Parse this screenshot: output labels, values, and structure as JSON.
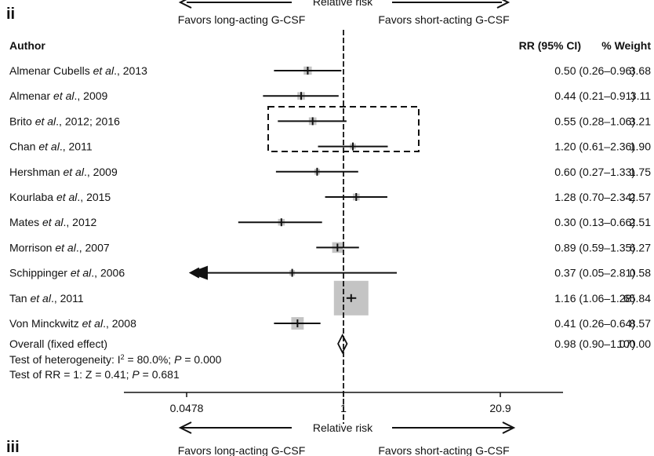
{
  "panel_top": {
    "label": "ii",
    "axis_title_partial": "Relative risk",
    "favors_left": "Favors long-acting G-CSF",
    "favors_right": "Favors short-acting G-CSF"
  },
  "headers": {
    "author": "Author",
    "rr": "RR (95% CI)",
    "weight": "% Weight"
  },
  "chart_data": {
    "type": "forest",
    "scale": "log",
    "xlim": [
      0.0478,
      20.9
    ],
    "xticks": [
      {
        "value": 0.0478,
        "label": "0.0478"
      },
      {
        "value": 1,
        "label": "1"
      },
      {
        "value": 20.9,
        "label": "20.9"
      }
    ],
    "xlabel": "Relative risk",
    "studies": [
      {
        "pre": "Almenar Cubells ",
        "etal": "et al",
        "post": "., 2013",
        "rr": 0.5,
        "lo": 0.26,
        "hi": 0.96,
        "ci_text": "0.50 (0.26–0.96)",
        "weight": 3.68,
        "weight_text": "3.68"
      },
      {
        "pre": "Almenar ",
        "etal": "et al",
        "post": "., 2009",
        "rr": 0.44,
        "lo": 0.21,
        "hi": 0.91,
        "ci_text": "0.44 (0.21–0.91)",
        "weight": 3.11,
        "weight_text": "3.11"
      },
      {
        "pre": "Brito ",
        "etal": "et al",
        "post": "., 2012; 2016",
        "rr": 0.55,
        "lo": 0.28,
        "hi": 1.06,
        "ci_text": "0.55 (0.28–1.06)",
        "weight": 3.21,
        "weight_text": "3.21"
      },
      {
        "pre": "Chan ",
        "etal": "et al",
        "post": "., 2011",
        "rr": 1.2,
        "lo": 0.61,
        "hi": 2.36,
        "ci_text": "1.20 (0.61–2.36)",
        "weight": 1.9,
        "weight_text": "1.90"
      },
      {
        "pre": "Hershman ",
        "etal": "et al",
        "post": "., 2009",
        "rr": 0.6,
        "lo": 0.27,
        "hi": 1.33,
        "ci_text": "0.60 (0.27–1.33)",
        "weight": 1.75,
        "weight_text": "1.75"
      },
      {
        "pre": "Kourlaba ",
        "etal": "et al",
        "post": "., 2015",
        "rr": 1.28,
        "lo": 0.7,
        "hi": 2.34,
        "ci_text": "1.28 (0.70–2.34)",
        "weight": 2.57,
        "weight_text": "2.57"
      },
      {
        "pre": "Mates ",
        "etal": "et al",
        "post": "., 2012",
        "rr": 0.3,
        "lo": 0.13,
        "hi": 0.66,
        "ci_text": "0.30 (0.13–0.66)",
        "weight": 2.51,
        "weight_text": "2.51"
      },
      {
        "pre": "Morrison ",
        "etal": "et al",
        "post": "., 2007",
        "rr": 0.89,
        "lo": 0.59,
        "hi": 1.35,
        "ci_text": "0.89 (0.59–1.35)",
        "weight": 6.27,
        "weight_text": "6.27"
      },
      {
        "pre": "Schippinger ",
        "etal": "et al",
        "post": "., 2006",
        "rr": 0.37,
        "lo": 0.05,
        "hi": 2.81,
        "ci_text": "0.37 (0.05–2.81)",
        "weight": 0.58,
        "weight_text": "0.58",
        "arrow_left": true
      },
      {
        "pre": "Tan ",
        "etal": "et al",
        "post": "., 2011",
        "rr": 1.16,
        "lo": 1.06,
        "hi": 1.28,
        "ci_text": "1.16 (1.06–1.28)",
        "weight": 65.84,
        "weight_text": "65.84"
      },
      {
        "pre": "Von Minckwitz ",
        "etal": "et al",
        "post": "., 2008",
        "rr": 0.41,
        "lo": 0.26,
        "hi": 0.64,
        "ci_text": "0.41 (0.26–0.64)",
        "weight": 8.57,
        "weight_text": "8.57"
      }
    ],
    "overall": {
      "label": "Overall (fixed effect)",
      "rr": 0.98,
      "lo": 0.9,
      "hi": 1.07,
      "ci_text": "0.98 (0.90–1.07)",
      "weight_text": "100.00"
    },
    "heterogeneity": {
      "pre": "Test of heterogeneity: I",
      "sup": "2",
      "mid": " = 80.0%; ",
      "p": "P",
      "post": " = 0.000"
    },
    "test_rr": {
      "pre": "Test of RR = 1: Z = 0.41; ",
      "p": "P",
      "post": " = 0.681"
    },
    "highlight_box_rows": [
      "Brito et al., 2012; 2016",
      "Chan et al., 2011"
    ]
  },
  "panel_bottom": {
    "label": "iii",
    "favors_left": "Favors long-acting G-CSF",
    "favors_right": "Favors short-acting G-CSF"
  }
}
